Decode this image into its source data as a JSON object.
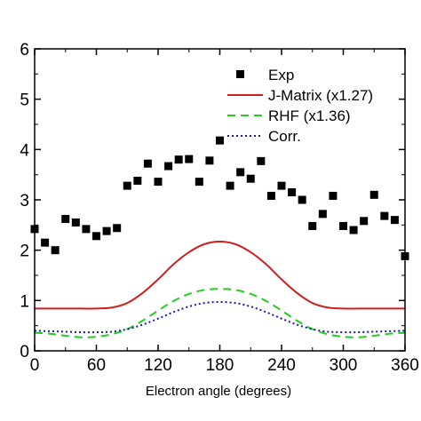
{
  "chart_data": {
    "type": "line",
    "xlabel": "Electron angle (degrees)",
    "ylabel": "",
    "xlim": [
      0,
      360
    ],
    "ylim": [
      0,
      6
    ],
    "x_ticks": [
      0,
      60,
      120,
      180,
      240,
      300,
      360
    ],
    "y_ticks": [
      0,
      1,
      2,
      3,
      4,
      5,
      6
    ],
    "grid": false,
    "legend_position": "top-right",
    "series": [
      {
        "name": "Exp",
        "style": "scatter",
        "marker": "square",
        "color": "#000000",
        "x": [
          0,
          10,
          20,
          30,
          40,
          50,
          60,
          70,
          80,
          90,
          100,
          110,
          120,
          130,
          140,
          150,
          160,
          170,
          180,
          190,
          200,
          210,
          220,
          230,
          240,
          250,
          260,
          270,
          280,
          290,
          300,
          310,
          320,
          330,
          340,
          350,
          360
        ],
        "y": [
          2.42,
          2.15,
          2.0,
          2.62,
          2.55,
          2.42,
          2.28,
          2.38,
          2.44,
          3.28,
          3.38,
          3.72,
          3.36,
          3.67,
          3.8,
          3.81,
          3.36,
          3.78,
          4.18,
          3.28,
          3.55,
          3.42,
          3.77,
          3.08,
          3.28,
          3.15,
          3.0,
          2.48,
          2.72,
          3.08,
          2.48,
          2.4,
          2.58,
          3.1,
          2.68,
          2.6,
          1.88
        ]
      },
      {
        "name": "J-Matrix (x1.27)",
        "style": "solid",
        "color": "#cc2020",
        "x": [
          0,
          15,
          30,
          45,
          60,
          75,
          90,
          105,
          120,
          135,
          150,
          165,
          180,
          195,
          210,
          225,
          240,
          255,
          270,
          285,
          300,
          315,
          330,
          345,
          360
        ],
        "y": [
          0.84,
          0.84,
          0.84,
          0.84,
          0.84,
          0.86,
          0.95,
          1.15,
          1.42,
          1.72,
          1.96,
          2.12,
          2.17,
          2.12,
          1.96,
          1.72,
          1.42,
          1.15,
          0.95,
          0.86,
          0.84,
          0.84,
          0.84,
          0.84,
          0.84
        ]
      },
      {
        "name": "RHF (x1.36)",
        "style": "dashed",
        "color": "#22cc22",
        "x": [
          0,
          15,
          30,
          45,
          60,
          75,
          90,
          105,
          120,
          135,
          150,
          165,
          180,
          195,
          210,
          225,
          240,
          255,
          270,
          285,
          300,
          315,
          330,
          345,
          360
        ],
        "y": [
          0.36,
          0.34,
          0.3,
          0.27,
          0.28,
          0.33,
          0.43,
          0.6,
          0.8,
          0.99,
          1.13,
          1.21,
          1.23,
          1.21,
          1.13,
          0.99,
          0.8,
          0.6,
          0.43,
          0.33,
          0.28,
          0.27,
          0.3,
          0.34,
          0.36
        ]
      },
      {
        "name": "Corr.",
        "style": "dotted",
        "color": "#1a1aa8",
        "x": [
          0,
          15,
          30,
          45,
          60,
          75,
          90,
          105,
          120,
          135,
          150,
          165,
          180,
          195,
          210,
          225,
          240,
          255,
          270,
          285,
          300,
          315,
          330,
          345,
          360
        ],
        "y": [
          0.4,
          0.39,
          0.38,
          0.37,
          0.37,
          0.38,
          0.43,
          0.52,
          0.64,
          0.77,
          0.88,
          0.95,
          0.97,
          0.95,
          0.88,
          0.77,
          0.64,
          0.52,
          0.43,
          0.38,
          0.37,
          0.37,
          0.38,
          0.39,
          0.4
        ]
      }
    ]
  }
}
